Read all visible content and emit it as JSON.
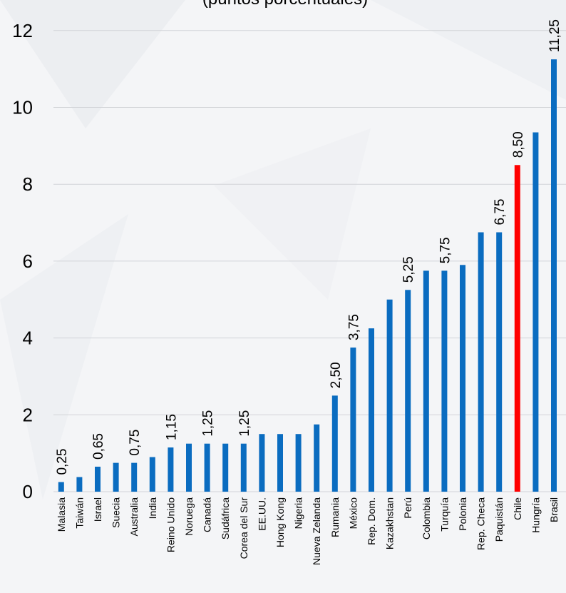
{
  "chart_data": {
    "type": "bar",
    "title": "(puntos porcentuales)",
    "xlabel": "",
    "ylabel": "",
    "ylim": [
      0,
      12.5
    ],
    "yticks": [
      0,
      2,
      4,
      6,
      8,
      10,
      12
    ],
    "grid": true,
    "legend": "none",
    "default_color": "#0a6cc0",
    "highlight_color": "#ff0000",
    "categories": [
      "Malasia",
      "Taiwán",
      "Israel",
      "Suecia",
      "Australia",
      "India",
      "Reino Unido",
      "Noruega",
      "Canadá",
      "Sudáfrica",
      "Corea del Sur",
      "EE.UU.",
      "Hong Kong",
      "Nigeria",
      "Nueva Zelanda",
      "Rumania",
      "México",
      "Rep. Dom.",
      "Kazakhstan",
      "Perú",
      "Colombia",
      "Turquía",
      "Polonia",
      "Rep. Checa",
      "Paquistán",
      "Chile",
      "Hungría",
      "Brasil"
    ],
    "values": [
      0.25,
      0.38,
      0.65,
      0.75,
      0.75,
      0.9,
      1.15,
      1.25,
      1.25,
      1.25,
      1.25,
      1.5,
      1.5,
      1.5,
      1.75,
      2.5,
      3.75,
      4.25,
      5.0,
      5.25,
      5.75,
      5.75,
      5.9,
      6.75,
      6.75,
      8.5,
      9.35,
      11.25
    ],
    "data_labels": [
      "0,25",
      "",
      "0,65",
      "",
      "0,75",
      "",
      "1,15",
      "",
      "1,25",
      "",
      "1,25",
      "",
      "",
      "",
      "",
      "2,50",
      "3,75",
      "",
      "",
      "5,25",
      "",
      "5,75",
      "",
      "",
      "6,75",
      "8,50",
      "",
      "11,25"
    ],
    "highlight": [
      "Chile"
    ]
  }
}
